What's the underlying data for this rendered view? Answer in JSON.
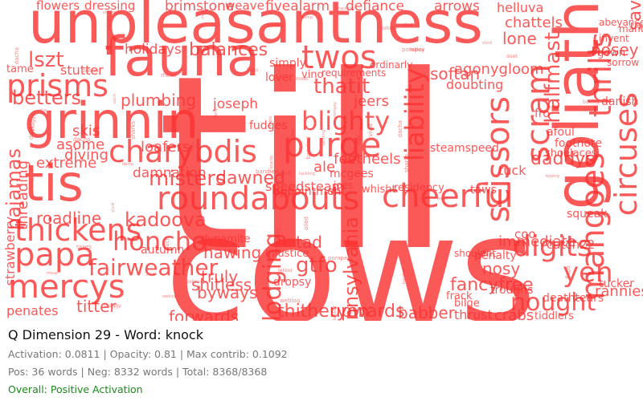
{
  "panel": {
    "title": "Q Dimension 29 - Word: knock",
    "stats": "Activation: 0.0811 | Opacity: 0.81 | Max contrib: 0.1092",
    "counts": "Pos: 36 words | Neg: 8332 words | Total: 8368/8368",
    "status": "Overall: Positive Activation",
    "status_color": "#1a8a1a"
  },
  "cloud": {
    "color": "#fb3232",
    "words": [
      "till",
      "cows",
      "unpleasantness",
      "fauna",
      "grinnin",
      "tis",
      "goliath",
      "roundabouts",
      "cheerful",
      "charybdis",
      "purge",
      "prisms",
      "thickens",
      "papa",
      "mercys",
      "twos",
      "lszt",
      "circuses",
      "thrills",
      "scram",
      "halfmast",
      "liability",
      "blighty",
      "scissors",
      "mangoes",
      "honcho",
      "fairweather",
      "digits",
      "nought",
      "yen",
      "lodging",
      "pennsylvania",
      "gtfo",
      "brimstone",
      "fivealarm",
      "defiance",
      "arrows",
      "lone",
      "chattels",
      "sav",
      "agonygloom",
      "thatit",
      "balances",
      "holidays",
      "plumbing",
      "joseph",
      "betters",
      "misters",
      "kadoova",
      "roadline",
      "extreme",
      "asome",
      "diving",
      "loafers",
      "skis",
      "dawned",
      "damnation",
      "pajamas",
      "threading",
      "strawberry",
      "tad",
      "byways",
      "truly",
      "shitless",
      "hawing",
      "forwards",
      "thitheryon",
      "upwards",
      "babber",
      "crabs",
      "thrust",
      "tiddlers",
      "penates",
      "titter",
      "fancyfree",
      "immediate",
      "catch22",
      "rannies",
      "deathtears",
      "tucker",
      "feetheels",
      "ale",
      "tuck",
      "daddys",
      "shoelaces",
      "footnote",
      "nosey",
      "softan",
      "doubting",
      "steamspeed",
      "jeers",
      "flowers",
      "dressing",
      "weave",
      "stutter",
      "tame",
      "helluva",
      "dynamite",
      "autumn",
      "injustice",
      "dropsy",
      "requirements",
      "vino",
      "simply",
      "lover",
      "mcgees",
      "joes",
      "ordinarly",
      "speedsteam",
      "appointment",
      "fudges",
      "mantle",
      "danish",
      "afoul",
      "squeak",
      "frack",
      "bilge",
      "troughs",
      "nosy",
      "penalty",
      "shouldnt",
      "sorrow",
      "invent",
      "abeyance",
      "whisht",
      "residency",
      "taws",
      "coo",
      "gown",
      "fro"
    ]
  }
}
